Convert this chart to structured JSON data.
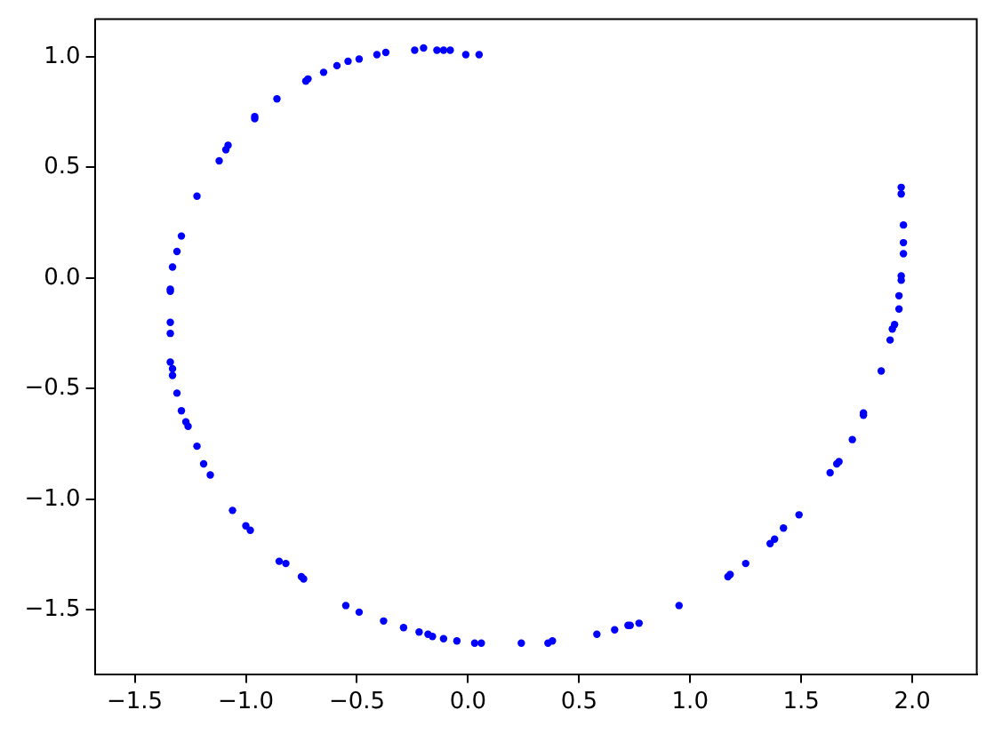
{
  "chart_data": {
    "type": "scatter",
    "marker": "circle",
    "grid": false,
    "legend": false,
    "xlim": [
      -1.68,
      2.29
    ],
    "ylim": [
      -1.79,
      1.17
    ],
    "xticks": [
      {
        "value": -1.5,
        "label": "−1.5"
      },
      {
        "value": -1.0,
        "label": "−1.0"
      },
      {
        "value": -0.5,
        "label": "−0.5"
      },
      {
        "value": 0,
        "label": "0.0"
      },
      0.5,
      {
        "value": 1.0,
        "label": "1.0"
      },
      1.5,
      {
        "value": 2.0,
        "label": "2.0"
      }
    ],
    "yticks": [
      {
        "value": -1.5,
        "label": "−1.5"
      },
      {
        "value": -1.0,
        "label": "−1.0"
      },
      {
        "value": -0.5,
        "label": "−0.5"
      },
      {
        "value": 0,
        "label": "0.0"
      },
      0.5,
      {
        "value": 1.0,
        "label": "1.0"
      }
    ],
    "series": [
      {
        "color": "#0000ff",
        "x": [
          0.05,
          -0.01,
          -0.08,
          -0.11,
          -0.14,
          -0.2,
          -0.24,
          -0.37,
          -0.41,
          -0.49,
          -0.54,
          -0.59,
          -0.65,
          -0.72,
          -0.73,
          -0.86,
          -0.96,
          -0.96,
          -1.08,
          -1.09,
          -1.12,
          -1.22,
          -1.29,
          -1.31,
          -1.33,
          -1.34,
          -1.34,
          -1.34,
          -1.34,
          -1.34,
          -1.33,
          -1.33,
          -1.31,
          -1.29,
          -1.27,
          -1.26,
          -1.22,
          -1.19,
          -1.16,
          -1.06,
          -1.0,
          -0.98,
          -0.85,
          -0.82,
          -0.75,
          -0.74,
          -0.55,
          -0.49,
          -0.38,
          -0.29,
          -0.22,
          -0.18,
          -0.16,
          -0.11,
          -0.05,
          0.03,
          0.06,
          0.24,
          0.36,
          0.38,
          0.58,
          0.66,
          0.72,
          0.73,
          0.77,
          0.95,
          1.17,
          1.18,
          1.25,
          1.36,
          1.38,
          1.42,
          1.49,
          1.63,
          1.66,
          1.67,
          1.73,
          1.78,
          1.78,
          1.86,
          1.9,
          1.91,
          1.92,
          1.94,
          1.94,
          1.95,
          1.95,
          1.96,
          1.96,
          1.96,
          1.95,
          1.95
        ],
        "values": [
          1.01,
          1.01,
          1.03,
          1.03,
          1.03,
          1.04,
          1.03,
          1.02,
          1.01,
          0.99,
          0.98,
          0.96,
          0.93,
          0.9,
          0.89,
          0.81,
          0.73,
          0.72,
          0.6,
          0.58,
          0.53,
          0.37,
          0.19,
          0.12,
          0.05,
          -0.05,
          -0.06,
          -0.2,
          -0.25,
          -0.38,
          -0.41,
          -0.44,
          -0.52,
          -0.6,
          -0.65,
          -0.67,
          -0.76,
          -0.84,
          -0.89,
          -1.05,
          -1.12,
          -1.14,
          -1.28,
          -1.29,
          -1.35,
          -1.36,
          -1.48,
          -1.51,
          -1.55,
          -1.58,
          -1.6,
          -1.61,
          -1.62,
          -1.63,
          -1.64,
          -1.65,
          -1.65,
          -1.65,
          -1.65,
          -1.64,
          -1.61,
          -1.59,
          -1.57,
          -1.57,
          -1.56,
          -1.48,
          -1.35,
          -1.34,
          -1.29,
          -1.2,
          -1.18,
          -1.13,
          -1.07,
          -0.88,
          -0.84,
          -0.83,
          -0.73,
          -0.62,
          -0.61,
          -0.42,
          -0.28,
          -0.23,
          -0.21,
          -0.14,
          -0.08,
          -0.01,
          0.01,
          0.11,
          0.16,
          0.24,
          0.38,
          0.41
        ]
      }
    ]
  }
}
